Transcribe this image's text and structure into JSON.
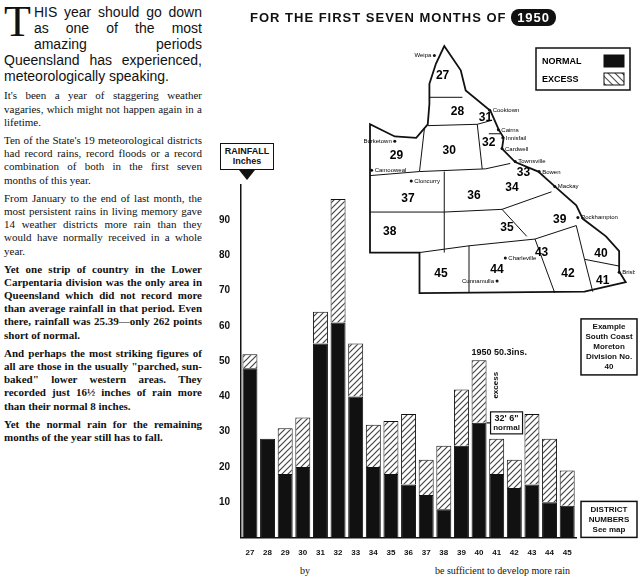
{
  "article": {
    "paragraphs": [
      "THIS year should go down as one of the most amazing periods Queensland has experienced, meteorologically speaking.",
      "It's been a year of staggering weather vagaries, which might not happen again in a lifetime.",
      "Ten of the State's 19 meteorological districts had record rains, record floods or a record combination of both in the first seven months of this year.",
      "From January to the end of last month, the most persistent rains in living memory gave 14 weather districts more rain than they would have normally received in a whole year.",
      "Yet one strip of country in the Lower Carpentaria division was the only area in Queensland which did not record more than average rainfall in that period. Even there, rainfall was 25.39—only 262 points short of normal.",
      "And perhaps the most striking figures of all are those in the usually \"parched, sun-baked\" lower western areas. They recorded just 16½ inches of rain more than their normal 8 inches.",
      "Yet the normal rain for the remaining months of the year still has to fall."
    ]
  },
  "page_fragments": [
    "by",
    "be sufficient to develop more rain"
  ],
  "chart_data": {
    "type": "bar",
    "title": "FOR THE FIRST SEVEN MONTHS OF 1950",
    "y_label": "RAINFALL Inches",
    "categories": [
      "27",
      "28",
      "29",
      "30",
      "31",
      "32",
      "33",
      "34",
      "35",
      "36",
      "37",
      "38",
      "39",
      "40",
      "41",
      "42",
      "43",
      "44",
      "45"
    ],
    "series": [
      {
        "name": "NORMAL",
        "color": "#111111",
        "values": [
          48,
          28,
          18,
          20,
          55,
          61,
          40,
          20,
          18,
          15,
          12,
          8,
          26,
          32.5,
          18,
          14,
          15,
          10,
          9
        ]
      },
      {
        "name": "EXCESS",
        "color": "#444444",
        "values": [
          4,
          0,
          13,
          14,
          9,
          35,
          15,
          12,
          15,
          20,
          10,
          18,
          16,
          17.8,
          10,
          8,
          20,
          18,
          10
        ]
      }
    ],
    "stacked": true,
    "grid": false,
    "ylim": [
      0,
      100
    ],
    "yticks": [
      10,
      20,
      30,
      40,
      50,
      60,
      70,
      80,
      90
    ],
    "annotations": {
      "category": "40",
      "total": "1950 50.3ins.",
      "excess": "excess",
      "normal": "32' 6\"",
      "normal_caption": "normal",
      "example": "Example South Coast Moreton Division No. 40"
    },
    "district_note": "DISTRICT NUMBERS See map",
    "map": {
      "districts": [
        "27",
        "28",
        "29",
        "30",
        "31",
        "32",
        "33",
        "34",
        "35",
        "36",
        "37",
        "38",
        "39",
        "40",
        "41",
        "42",
        "43",
        "44",
        "45"
      ],
      "towns": [
        "Weipa",
        "Cooktown",
        "Cairns",
        "Innisfail",
        "Cardwell",
        "Townsville",
        "Bowen",
        "Mackay",
        "Rockhampton",
        "Brisbane",
        "Burketown",
        "Camooweal",
        "Cloncurry",
        "Charleville",
        "Cunnamulla"
      ]
    }
  }
}
